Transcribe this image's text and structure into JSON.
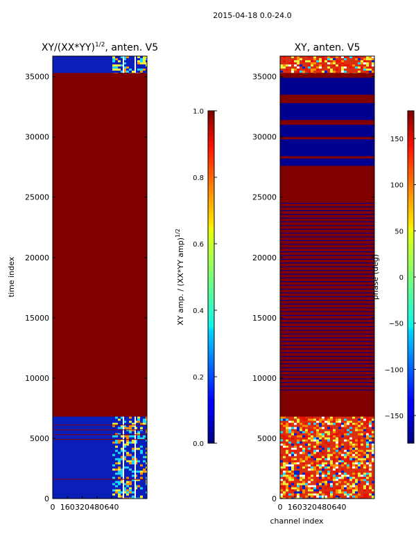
{
  "suptitle": "2015-04-18 0.0-24.0",
  "colors": {
    "dark_red": "#800000",
    "dark_blue": "#00008f",
    "mid_blue": "#0020c8",
    "cyan": "#20d8ff",
    "yellow": "#f0f040",
    "orange": "#ff9000",
    "red": "#e81000"
  },
  "chart_data": [
    {
      "type": "heatmap",
      "title_main": "XY/(XX*YY)",
      "title_sup": "1/2",
      "title_rest": ", anten. V5",
      "ylabel": "time index",
      "xlabel": "",
      "ylim": [
        0,
        36700
      ],
      "xlim": [
        0,
        1024
      ],
      "yticks": [
        0,
        5000,
        10000,
        15000,
        20000,
        25000,
        30000,
        35000
      ],
      "xticks": [
        0,
        160,
        320,
        480,
        640
      ],
      "xtick_labels": [
        "0",
        "160",
        "320",
        "480",
        "640"
      ],
      "saturated_band": [
        6800,
        35300
      ],
      "colorbar": {
        "label_main": "XY amp. / (XX*YY amp)",
        "label_sup": "1/2",
        "min": 0.0,
        "max": 1.0,
        "ticks": [
          0.0,
          0.2,
          0.4,
          0.6,
          0.8,
          1.0
        ],
        "tick_labels": [
          "0.0",
          "0.2",
          "0.4",
          "0.6",
          "0.8",
          "1.0"
        ]
      }
    },
    {
      "type": "heatmap",
      "title_main": "XY, anten. V5",
      "ylabel": "",
      "xlabel": "channel index",
      "ylim": [
        0,
        36700
      ],
      "xlim": [
        0,
        1024
      ],
      "yticks": [
        0,
        5000,
        10000,
        15000,
        20000,
        25000,
        30000,
        35000
      ],
      "xticks": [
        0,
        160,
        320,
        480,
        640
      ],
      "xtick_labels": [
        "0",
        "160",
        "320",
        "480",
        "640"
      ],
      "saturated_band": [
        6800,
        35300
      ],
      "colorbar": {
        "label_main": "phase (deg)",
        "min": -180,
        "max": 180,
        "ticks": [
          -150,
          -100,
          -50,
          0,
          50,
          100,
          150
        ],
        "tick_labels": [
          "−150",
          "−100",
          "−50",
          "0",
          "50",
          "100",
          "150"
        ]
      }
    }
  ]
}
